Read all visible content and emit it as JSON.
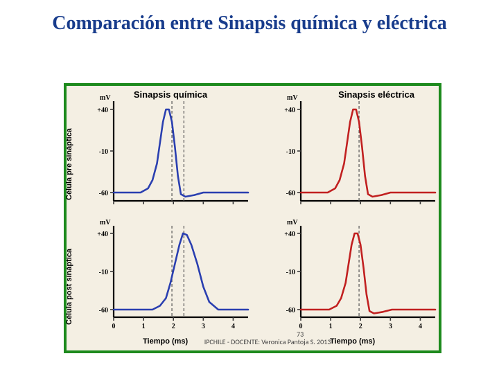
{
  "title": "Comparación entre Sinapsis química y eléctrica",
  "labels": {
    "left": "Sinapsis química",
    "right": "Sinapsis eléctrica",
    "y_top": "Célula pre sináptica",
    "y_bottom": "Célula post sináptica",
    "y_unit": "mV",
    "x_unit": "Tiempo (ms)"
  },
  "axes": {
    "y_ticks": [
      40,
      -10,
      -60
    ],
    "y_tick_labels": [
      "+40",
      "-10",
      "-60"
    ],
    "x_ticks": [
      0,
      1,
      2,
      3,
      4
    ],
    "ylim": [
      -70,
      50
    ],
    "xlim": [
      0,
      4.5
    ]
  },
  "colors": {
    "title": "#183c8c",
    "frame": "#1d8a1d",
    "panel_bg": "#f4efe3",
    "axis": "#000000",
    "tick": "#3a3a3a",
    "series_left": "#2a3fb0",
    "series_right": "#c12020",
    "vline": "#555555"
  },
  "chart_style": {
    "line_width": 2.6,
    "axis_width": 2.2,
    "tick_len": 5,
    "vline_dash": "4,3"
  },
  "panels": {
    "top_left": {
      "color_key": "series_left",
      "vlines": [
        1.95,
        2.35
      ],
      "series": [
        [
          0.0,
          -60
        ],
        [
          0.9,
          -60
        ],
        [
          1.15,
          -55
        ],
        [
          1.3,
          -45
        ],
        [
          1.45,
          -25
        ],
        [
          1.55,
          0
        ],
        [
          1.65,
          25
        ],
        [
          1.75,
          40
        ],
        [
          1.85,
          40
        ],
        [
          1.95,
          25
        ],
        [
          2.05,
          -5
        ],
        [
          2.15,
          -40
        ],
        [
          2.25,
          -62
        ],
        [
          2.4,
          -65
        ],
        [
          2.7,
          -63
        ],
        [
          3.0,
          -60
        ],
        [
          4.5,
          -60
        ]
      ]
    },
    "bottom_left": {
      "color_key": "series_left",
      "vlines": [
        1.95,
        2.35
      ],
      "series": [
        [
          0.0,
          -60
        ],
        [
          1.3,
          -60
        ],
        [
          1.55,
          -55
        ],
        [
          1.75,
          -45
        ],
        [
          1.9,
          -25
        ],
        [
          2.05,
          0
        ],
        [
          2.2,
          25
        ],
        [
          2.32,
          40
        ],
        [
          2.45,
          38
        ],
        [
          2.6,
          25
        ],
        [
          2.8,
          0
        ],
        [
          3.0,
          -30
        ],
        [
          3.2,
          -50
        ],
        [
          3.5,
          -60
        ],
        [
          4.5,
          -60
        ]
      ]
    },
    "top_right": {
      "color_key": "series_right",
      "vlines": [
        1.95
      ],
      "series": [
        [
          0.0,
          -60
        ],
        [
          0.9,
          -60
        ],
        [
          1.15,
          -55
        ],
        [
          1.3,
          -45
        ],
        [
          1.45,
          -25
        ],
        [
          1.55,
          0
        ],
        [
          1.65,
          25
        ],
        [
          1.75,
          40
        ],
        [
          1.85,
          40
        ],
        [
          1.95,
          25
        ],
        [
          2.05,
          -5
        ],
        [
          2.15,
          -40
        ],
        [
          2.25,
          -62
        ],
        [
          2.4,
          -65
        ],
        [
          2.7,
          -63
        ],
        [
          3.0,
          -60
        ],
        [
          4.5,
          -60
        ]
      ]
    },
    "bottom_right": {
      "color_key": "series_right",
      "vlines": [
        1.95
      ],
      "series": [
        [
          0.0,
          -60
        ],
        [
          0.95,
          -60
        ],
        [
          1.2,
          -55
        ],
        [
          1.35,
          -45
        ],
        [
          1.5,
          -25
        ],
        [
          1.6,
          0
        ],
        [
          1.7,
          25
        ],
        [
          1.8,
          40
        ],
        [
          1.9,
          40
        ],
        [
          2.0,
          25
        ],
        [
          2.1,
          -5
        ],
        [
          2.2,
          -40
        ],
        [
          2.3,
          -62
        ],
        [
          2.45,
          -65
        ],
        [
          2.75,
          -63
        ],
        [
          3.05,
          -60
        ],
        [
          4.5,
          -60
        ]
      ]
    }
  },
  "footer": "IPCHILE  - DOCENTE: Veronica Pantoja S.  2013",
  "footer_page": "73"
}
